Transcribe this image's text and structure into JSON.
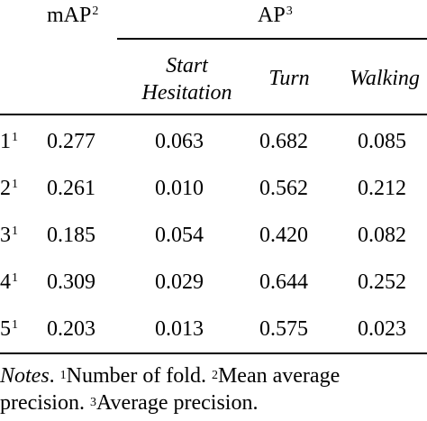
{
  "header": {
    "map_label": "mAP",
    "map_sup": "2",
    "ap_label": "AP",
    "ap_sup": "3"
  },
  "subheaders": [
    "Start Hesitation",
    "Turn",
    "Walking"
  ],
  "start_hesitation": {
    "line1": "Start",
    "line2": "Hesitation"
  },
  "rows": [
    {
      "fold": "1",
      "sup": "1",
      "map": "0.277",
      "start": "0.063",
      "turn": "0.682",
      "walking": "0.085"
    },
    {
      "fold": "2",
      "sup": "1",
      "map": "0.261",
      "start": "0.010",
      "turn": "0.562",
      "walking": "0.212"
    },
    {
      "fold": "3",
      "sup": "1",
      "map": "0.185",
      "start": "0.054",
      "turn": "0.420",
      "walking": "0.082"
    },
    {
      "fold": "4",
      "sup": "1",
      "map": "0.309",
      "start": "0.029",
      "turn": "0.644",
      "walking": "0.252"
    },
    {
      "fold": "5",
      "sup": "1",
      "map": "0.203",
      "start": "0.013",
      "turn": "0.575",
      "walking": "0.023"
    }
  ],
  "notes": {
    "label": "Notes",
    "sup1": "1",
    "text1": "Number of fold.",
    "sup2": "2",
    "text2": "Mean average",
    "text3": "precision.",
    "sup3": "3",
    "text4": "Average precision."
  }
}
